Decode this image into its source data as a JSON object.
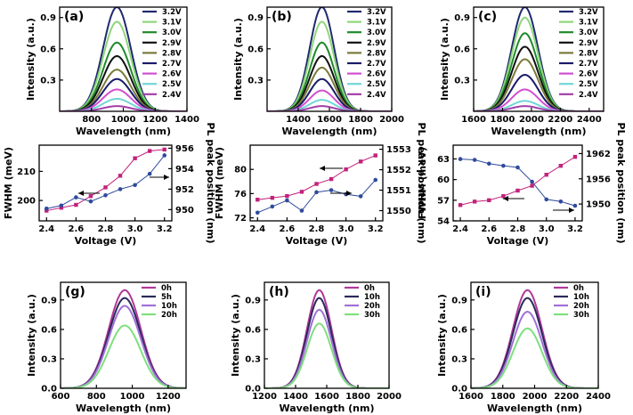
{
  "chart_data": [
    {
      "id": "a",
      "type": "line",
      "panel_label": "(a)",
      "xlabel": "Wavelength (nm)",
      "ylabel": "Intensity (a.u.)",
      "xlim": [
        600,
        1400
      ],
      "ylim": [
        0,
        1.0
      ],
      "xticks": [
        800,
        1000,
        1200,
        1400
      ],
      "yticks": [
        0.3,
        0.6,
        0.9
      ],
      "peak_center": 960,
      "fwhm": 205,
      "series": [
        {
          "name": "3.2V",
          "amplitude": 1.0,
          "color": "#1f2a6e"
        },
        {
          "name": "3.1V",
          "amplitude": 0.86,
          "color": "#8dd67a"
        },
        {
          "name": "3.0V",
          "amplitude": 0.66,
          "color": "#1f8a2a"
        },
        {
          "name": "2.9V",
          "amplitude": 0.53,
          "color": "#111111"
        },
        {
          "name": "2.8V",
          "amplitude": 0.4,
          "color": "#7a7a3a"
        },
        {
          "name": "2.7V",
          "amplitude": 0.31,
          "color": "#1a1a6a"
        },
        {
          "name": "2.6V",
          "amplitude": 0.21,
          "color": "#d24fd0"
        },
        {
          "name": "2.5V",
          "amplitude": 0.12,
          "color": "#72d6d6"
        },
        {
          "name": "2.4V",
          "amplitude": 0.05,
          "color": "#a23ea8"
        }
      ]
    },
    {
      "id": "b",
      "type": "line",
      "panel_label": "(b)",
      "xlabel": "Wavelength (nm)",
      "ylabel": "Intensity (a.u.)",
      "xlim": [
        1200,
        2000
      ],
      "ylim": [
        0,
        1.0
      ],
      "xticks": [
        1400,
        1600,
        1800,
        2000
      ],
      "yticks": [
        0.3,
        0.6,
        0.9
      ],
      "peak_center": 1552,
      "fwhm": 185,
      "series": [
        {
          "name": "3.2V",
          "amplitude": 1.0,
          "color": "#1f2a6e"
        },
        {
          "name": "3.1V",
          "amplitude": 0.86,
          "color": "#8dd67a"
        },
        {
          "name": "3.0V",
          "amplitude": 0.66,
          "color": "#1f8a2a"
        },
        {
          "name": "2.9V",
          "amplitude": 0.53,
          "color": "#111111"
        },
        {
          "name": "2.8V",
          "amplitude": 0.42,
          "color": "#7a7a3a"
        },
        {
          "name": "2.7V",
          "amplitude": 0.31,
          "color": "#1a1a6a"
        },
        {
          "name": "2.6V",
          "amplitude": 0.2,
          "color": "#d24fd0"
        },
        {
          "name": "2.5V",
          "amplitude": 0.11,
          "color": "#72d6d6"
        },
        {
          "name": "2.4V",
          "amplitude": 0.05,
          "color": "#a23ea8"
        }
      ]
    },
    {
      "id": "c",
      "type": "line",
      "panel_label": "(c)",
      "xlabel": "Wavelength (nm)",
      "ylabel": "Intensity (a.u.)",
      "xlim": [
        1600,
        2500
      ],
      "ylim": [
        0,
        1.0
      ],
      "xticks": [
        1600,
        1800,
        2000,
        2200,
        2400
      ],
      "yticks": [
        0.3,
        0.6,
        0.9
      ],
      "peak_center": 1955,
      "fwhm": 215,
      "series": [
        {
          "name": "3.2V",
          "amplitude": 1.0,
          "color": "#1f2a6e"
        },
        {
          "name": "3.1V",
          "amplitude": 0.9,
          "color": "#8dd67a"
        },
        {
          "name": "3.0V",
          "amplitude": 0.75,
          "color": "#1f8a2a"
        },
        {
          "name": "2.9V",
          "amplitude": 0.62,
          "color": "#111111"
        },
        {
          "name": "2.8V",
          "amplitude": 0.5,
          "color": "#7a7a3a"
        },
        {
          "name": "2.7V",
          "amplitude": 0.35,
          "color": "#1a1a6a"
        },
        {
          "name": "2.6V",
          "amplitude": 0.21,
          "color": "#d24fd0"
        },
        {
          "name": "2.5V",
          "amplitude": 0.1,
          "color": "#72d6d6"
        },
        {
          "name": "2.4V",
          "amplitude": 0.05,
          "color": "#a23ea8"
        }
      ]
    },
    {
      "id": "d",
      "type": "line",
      "xlabel": "Voltage (V)",
      "ylabel_left": "FWHM (meV)",
      "ylabel_right": "PL peak position (nm)",
      "xlim": [
        2.35,
        3.25
      ],
      "ylim_left": [
        193,
        219
      ],
      "ylim_right": [
        948.9,
        956.3
      ],
      "xticks": [
        2.4,
        2.6,
        2.8,
        3.0,
        3.2
      ],
      "yticks_left": [
        200,
        210,
        220
      ],
      "yticks_right": [
        950,
        952,
        954,
        956
      ],
      "x": [
        2.4,
        2.5,
        2.6,
        2.7,
        2.8,
        2.9,
        3.0,
        3.1,
        3.2
      ],
      "fwhm": [
        196.5,
        197.5,
        198.5,
        201.5,
        204.5,
        208.5,
        214.5,
        217.0,
        217.5
      ],
      "peak": [
        950.1,
        950.4,
        951.2,
        950.8,
        951.4,
        952.0,
        952.4,
        953.5,
        955.3
      ],
      "arrow_left_dir": "left",
      "arrow_right_dir": "right"
    },
    {
      "id": "e",
      "type": "line",
      "xlabel": "Voltage (V)",
      "ylabel_left": "FWHM (meV)",
      "ylabel_right": "PL peak position (nm)",
      "xlim": [
        2.35,
        3.25
      ],
      "ylim_left": [
        71.5,
        84
      ],
      "ylim_right": [
        1549.5,
        1553.2
      ],
      "xticks": [
        2.4,
        2.6,
        2.8,
        3.0,
        3.2
      ],
      "yticks_left": [
        72,
        76,
        80
      ],
      "yticks_right": [
        1550,
        1551,
        1552,
        1553
      ],
      "x": [
        2.4,
        2.5,
        2.6,
        2.7,
        2.8,
        2.9,
        3.0,
        3.1,
        3.2
      ],
      "fwhm": [
        75.0,
        75.3,
        75.6,
        76.3,
        77.6,
        78.4,
        80.0,
        81.3,
        82.3
      ],
      "peak": [
        1549.9,
        1550.2,
        1550.5,
        1550.0,
        1550.9,
        1551.0,
        1550.8,
        1550.7,
        1551.5
      ],
      "arrow_left_dir": "left",
      "arrow_right_dir": "right"
    },
    {
      "id": "f",
      "type": "line",
      "xlabel": "Voltage (V)",
      "ylabel_left": "FWHM (meV)",
      "ylabel_right": "PL peak position (nm)",
      "xlim": [
        2.35,
        3.25
      ],
      "ylim_left": [
        54,
        65
      ],
      "ylim_right": [
        1946,
        1964
      ],
      "xticks": [
        2.4,
        2.6,
        2.8,
        3.0,
        3.2
      ],
      "yticks_left": [
        54,
        57,
        60,
        63
      ],
      "yticks_right": [
        1950,
        1956,
        1962
      ],
      "x": [
        2.4,
        2.5,
        2.6,
        2.7,
        2.8,
        2.9,
        3.0,
        3.1,
        3.2
      ],
      "fwhm": [
        56.3,
        56.8,
        57.0,
        57.6,
        58.4,
        59.1,
        60.7,
        62.0,
        63.3
      ],
      "peak": [
        1960.7,
        1960.5,
        1959.6,
        1959.1,
        1958.7,
        1955.3,
        1951.1,
        1950.6,
        1949.6
      ],
      "arrow_left_dir": "left",
      "arrow_right_dir": "right"
    },
    {
      "id": "g",
      "type": "line",
      "panel_label": "(g)",
      "xlabel": "Wavelength (nm)",
      "ylabel": "Intensity (a.u.)",
      "xlim": [
        600,
        1300
      ],
      "ylim": [
        0,
        1.08
      ],
      "xticks": [
        600,
        800,
        1000,
        1200
      ],
      "yticks": [
        0.0,
        0.3,
        0.6,
        0.9
      ],
      "peak_center": 958,
      "fwhm": 210,
      "series": [
        {
          "name": "0h",
          "amplitude": 1.0,
          "color": "#b0389a"
        },
        {
          "name": "5h",
          "amplitude": 0.92,
          "color": "#2a2a5a"
        },
        {
          "name": "10h",
          "amplitude": 0.84,
          "color": "#a070d8"
        },
        {
          "name": "20h",
          "amplitude": 0.64,
          "color": "#7ee07e"
        }
      ]
    },
    {
      "id": "h",
      "type": "line",
      "panel_label": "(h)",
      "xlabel": "Wavelength (nm)",
      "ylabel": "Intensity (a.u.)",
      "xlim": [
        1200,
        2000
      ],
      "ylim": [
        0,
        1.08
      ],
      "xticks": [
        1200,
        1400,
        1600,
        1800,
        2000
      ],
      "yticks": [
        0.0,
        0.3,
        0.6,
        0.9
      ],
      "peak_center": 1552,
      "fwhm": 185,
      "series": [
        {
          "name": "0h",
          "amplitude": 1.0,
          "color": "#b0389a"
        },
        {
          "name": "10h",
          "amplitude": 0.92,
          "color": "#2a2a5a"
        },
        {
          "name": "20h",
          "amplitude": 0.8,
          "color": "#a070d8"
        },
        {
          "name": "30h",
          "amplitude": 0.66,
          "color": "#7ee07e"
        }
      ]
    },
    {
      "id": "i",
      "type": "line",
      "panel_label": "(i)",
      "xlabel": "Wavelength (nm)",
      "ylabel": "Intensity (a.u.)",
      "xlim": [
        1600,
        2400
      ],
      "ylim": [
        0,
        1.08
      ],
      "xticks": [
        1600,
        1800,
        2000,
        2200,
        2400
      ],
      "yticks": [
        0.0,
        0.3,
        0.6,
        0.9
      ],
      "peak_center": 1955,
      "fwhm": 215,
      "series": [
        {
          "name": "0h",
          "amplitude": 1.0,
          "color": "#b0389a"
        },
        {
          "name": "10h",
          "amplitude": 0.92,
          "color": "#2a2a5a"
        },
        {
          "name": "20h",
          "amplitude": 0.78,
          "color": "#a070d8"
        },
        {
          "name": "30h",
          "amplitude": 0.61,
          "color": "#7ee07e"
        }
      ]
    }
  ],
  "colors": {
    "fwhm_series": "#c2227a",
    "peak_series": "#2f4a9c",
    "axis": "#000000"
  }
}
